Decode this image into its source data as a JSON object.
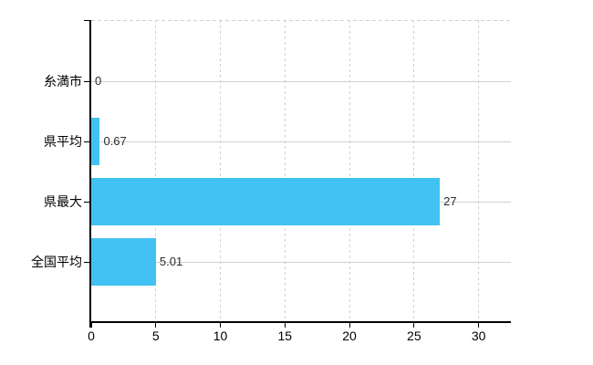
{
  "chart": {
    "bar_color": "#42c2f3",
    "axis_color": "#000000",
    "horizontal_grid_color": "#ccd4cb",
    "vertical_grid_color": "#d9ccd4",
    "background_color": "#ffffff",
    "text_color": "#000000",
    "value_label_color": "#2b2b2b"
  },
  "chart_data": {
    "type": "bar",
    "orientation": "horizontal",
    "title": "",
    "xlabel": "",
    "ylabel": "",
    "categories": [
      "糸満市",
      "県平均",
      "県最大",
      "全国平均"
    ],
    "values": [
      0,
      0.67,
      27,
      5.01
    ],
    "value_labels": [
      "0",
      "0.67",
      "27",
      "5.01"
    ],
    "x_ticks": [
      0,
      5,
      10,
      15,
      20,
      25,
      30
    ],
    "x_tick_labels": [
      "0",
      "5",
      "10",
      "15",
      "20",
      "25",
      "30"
    ],
    "xlim": [
      0,
      32.5
    ],
    "grid": true,
    "legend": false
  }
}
